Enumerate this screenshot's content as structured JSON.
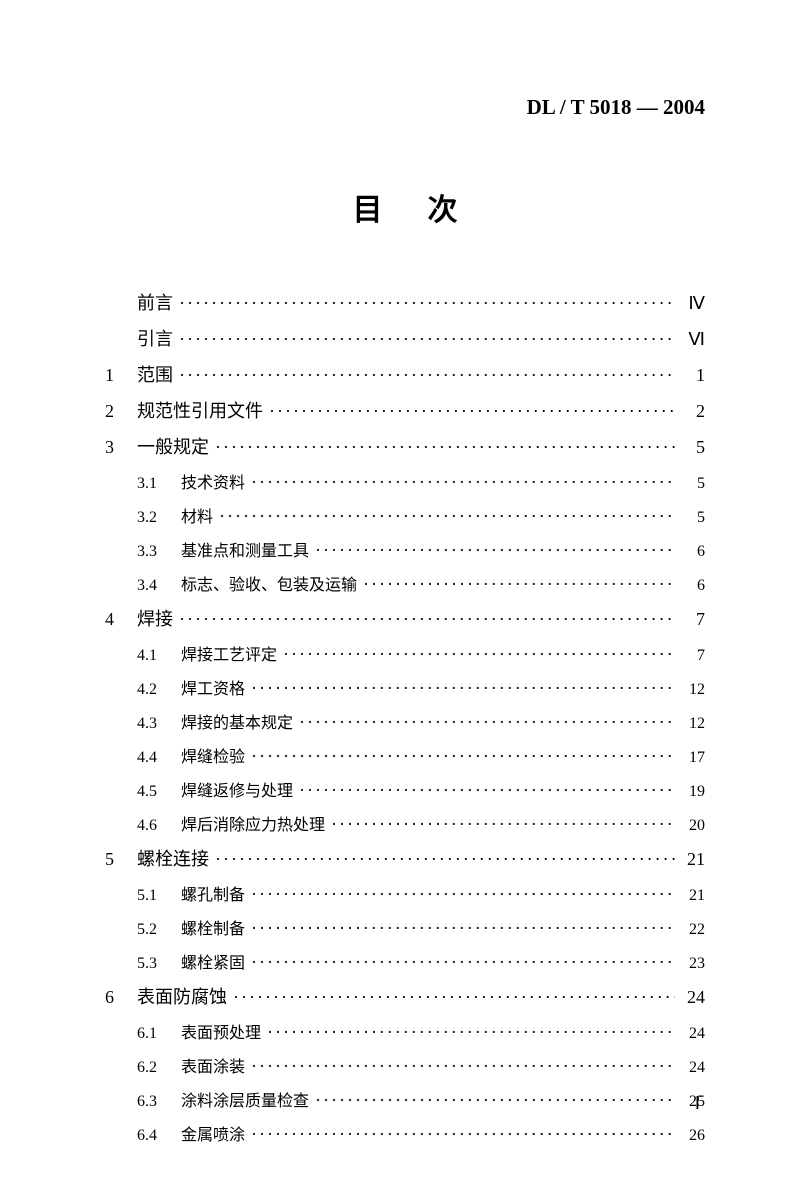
{
  "header": "DL / T 5018 — 2004",
  "title": "目次",
  "entries": [
    {
      "num": "",
      "sub": "",
      "label": "前言",
      "page": "Ⅳ",
      "indent": 0
    },
    {
      "num": "",
      "sub": "",
      "label": "引言",
      "page": "Ⅵ",
      "indent": 0
    },
    {
      "num": "1",
      "sub": "",
      "label": "范围",
      "page": "1",
      "indent": 0
    },
    {
      "num": "2",
      "sub": "",
      "label": "规范性引用文件",
      "page": "2",
      "indent": 0
    },
    {
      "num": "3",
      "sub": "",
      "label": "一般规定",
      "page": "5",
      "indent": 0
    },
    {
      "num": "",
      "sub": "3.1",
      "label": "技术资料",
      "page": "5",
      "indent": 1
    },
    {
      "num": "",
      "sub": "3.2",
      "label": "材料",
      "page": "5",
      "indent": 1
    },
    {
      "num": "",
      "sub": "3.3",
      "label": "基准点和测量工具",
      "page": "6",
      "indent": 1
    },
    {
      "num": "",
      "sub": "3.4",
      "label": "标志、验收、包装及运输",
      "page": "6",
      "indent": 1
    },
    {
      "num": "4",
      "sub": "",
      "label": "焊接",
      "page": "7",
      "indent": 0
    },
    {
      "num": "",
      "sub": "4.1",
      "label": "焊接工艺评定",
      "page": "7",
      "indent": 1
    },
    {
      "num": "",
      "sub": "4.2",
      "label": "焊工资格",
      "page": "12",
      "indent": 1
    },
    {
      "num": "",
      "sub": "4.3",
      "label": "焊接的基本规定",
      "page": "12",
      "indent": 1
    },
    {
      "num": "",
      "sub": "4.4",
      "label": "焊缝检验",
      "page": "17",
      "indent": 1
    },
    {
      "num": "",
      "sub": "4.5",
      "label": "焊缝返修与处理",
      "page": "19",
      "indent": 1
    },
    {
      "num": "",
      "sub": "4.6",
      "label": "焊后消除应力热处理",
      "page": "20",
      "indent": 1
    },
    {
      "num": "5",
      "sub": "",
      "label": "螺栓连接",
      "page": "21",
      "indent": 0
    },
    {
      "num": "",
      "sub": "5.1",
      "label": "螺孔制备",
      "page": "21",
      "indent": 1
    },
    {
      "num": "",
      "sub": "5.2",
      "label": "螺栓制备",
      "page": "22",
      "indent": 1
    },
    {
      "num": "",
      "sub": "5.3",
      "label": "螺栓紧固",
      "page": "23",
      "indent": 1
    },
    {
      "num": "6",
      "sub": "",
      "label": "表面防腐蚀",
      "page": "24",
      "indent": 0
    },
    {
      "num": "",
      "sub": "6.1",
      "label": "表面预处理",
      "page": "24",
      "indent": 1
    },
    {
      "num": "",
      "sub": "6.2",
      "label": "表面涂装",
      "page": "24",
      "indent": 1
    },
    {
      "num": "",
      "sub": "6.3",
      "label": "涂料涂层质量检查",
      "page": "25",
      "indent": 1
    },
    {
      "num": "",
      "sub": "6.4",
      "label": "金属喷涂",
      "page": "26",
      "indent": 1
    }
  ],
  "pageNumber": "Ⅰ"
}
